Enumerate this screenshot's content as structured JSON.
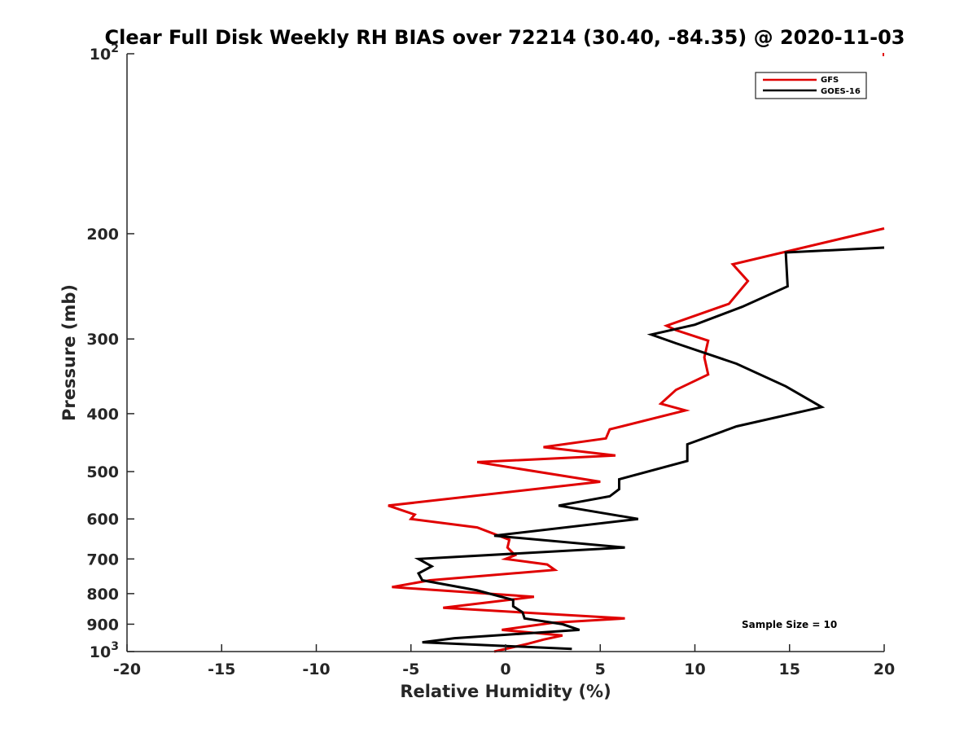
{
  "chart_data": {
    "type": "line",
    "title": "Clear Full Disk Weekly RH BIAS over 72214 (30.40, -84.35) @ 2020-11-03",
    "xlabel": "Relative Humidity (%)",
    "ylabel": "Pressure (mb)",
    "xlim": [
      -20,
      20
    ],
    "ylim": [
      100,
      1000
    ],
    "y_scale": "log",
    "y_reversed": true,
    "x_ticks": [
      -20,
      -15,
      -10,
      -5,
      0,
      5,
      10,
      15,
      20
    ],
    "x_tick_labels": [
      "-20",
      "-15",
      "-10",
      "-5",
      "0",
      "5",
      "10",
      "15",
      "20"
    ],
    "y_ticks": [
      {
        "value": 100,
        "base": "10",
        "exp": "2"
      },
      {
        "value": 200,
        "label": "200"
      },
      {
        "value": 300,
        "label": "300"
      },
      {
        "value": 400,
        "label": "400"
      },
      {
        "value": 500,
        "label": "500"
      },
      {
        "value": 600,
        "label": "600"
      },
      {
        "value": 700,
        "label": "700"
      },
      {
        "value": 800,
        "label": "800"
      },
      {
        "value": 900,
        "label": "900"
      },
      {
        "value": 1000,
        "base": "10",
        "exp": "3"
      }
    ],
    "legend": {
      "position": "top-right"
    },
    "annotation": "Sample Size = 10",
    "series": [
      {
        "name": "GFS",
        "color": "#e00000",
        "points": [
          [
            20,
            196
          ],
          [
            12.0,
            225
          ],
          [
            12.8,
            240
          ],
          [
            11.8,
            262
          ],
          [
            8.5,
            285
          ],
          [
            9.0,
            290
          ],
          [
            10.7,
            302
          ],
          [
            10.5,
            322
          ],
          [
            10.7,
            344
          ],
          [
            9.0,
            365
          ],
          [
            8.2,
            385
          ],
          [
            9.5,
            395
          ],
          [
            5.5,
            425
          ],
          [
            5.3,
            440
          ],
          [
            2.0,
            455
          ],
          [
            5.8,
            470
          ],
          [
            -1.5,
            482
          ],
          [
            5.0,
            520
          ],
          [
            -6.2,
            570
          ],
          [
            -4.8,
            590
          ],
          [
            -5.0,
            600
          ],
          [
            -1.5,
            620
          ],
          [
            0.2,
            650
          ],
          [
            0.1,
            670
          ],
          [
            0.5,
            690
          ],
          [
            0.0,
            700
          ],
          [
            2.2,
            715
          ],
          [
            2.6,
            730
          ],
          [
            -4.0,
            760
          ],
          [
            -6.0,
            780
          ],
          [
            1.5,
            810
          ],
          [
            -3.3,
            845
          ],
          [
            6.3,
            880
          ],
          [
            2.5,
            895
          ],
          [
            -0.2,
            920
          ],
          [
            3.0,
            940
          ],
          [
            2.0,
            955
          ],
          [
            1.2,
            970
          ],
          [
            -0.6,
            1000
          ]
        ]
      },
      {
        "name": "GOES-16",
        "color": "#000000",
        "points": [
          [
            20,
            211
          ],
          [
            14.8,
            215
          ],
          [
            14.9,
            245
          ],
          [
            12.5,
            265
          ],
          [
            10.0,
            284
          ],
          [
            7.7,
            295
          ],
          [
            9.0,
            305
          ],
          [
            12.2,
            330
          ],
          [
            14.8,
            360
          ],
          [
            16.7,
            390
          ],
          [
            12.2,
            420
          ],
          [
            9.6,
            450
          ],
          [
            9.6,
            480
          ],
          [
            6.0,
            515
          ],
          [
            6.0,
            535
          ],
          [
            5.5,
            550
          ],
          [
            2.8,
            570
          ],
          [
            7.0,
            600
          ],
          [
            -0.6,
            640
          ],
          [
            6.3,
            670
          ],
          [
            -4.6,
            700
          ],
          [
            -3.9,
            720
          ],
          [
            -4.6,
            740
          ],
          [
            -4.4,
            760
          ],
          [
            -1.5,
            790
          ],
          [
            0.4,
            820
          ],
          [
            0.4,
            840
          ],
          [
            0.9,
            860
          ],
          [
            1.0,
            880
          ],
          [
            3.0,
            900
          ],
          [
            3.9,
            920
          ],
          [
            -2.7,
            950
          ],
          [
            -4.4,
            965
          ],
          [
            3.5,
            990
          ]
        ]
      }
    ]
  }
}
